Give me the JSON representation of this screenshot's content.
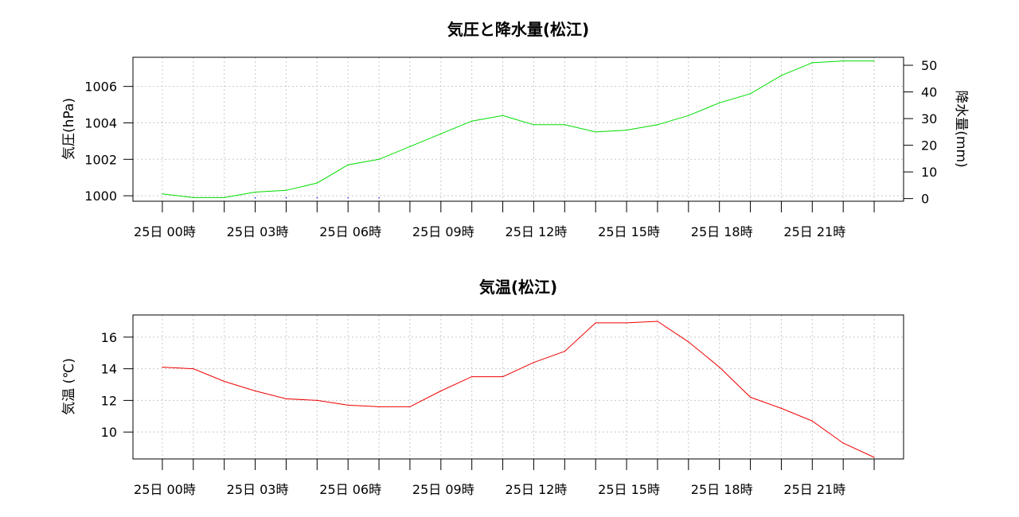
{
  "chart_data": [
    {
      "type": "line",
      "title": "気圧と降水量(松江)",
      "ylabel": "気圧(hPa)",
      "y2label": "降水量(mm)",
      "x_tick_labels": [
        "25日 00時",
        "25日 03時",
        "25日 06時",
        "25日 09時",
        "25日 12時",
        "25日 15時",
        "25日 18時",
        "25日 21時"
      ],
      "x": [
        0,
        1,
        2,
        3,
        4,
        5,
        6,
        7,
        8,
        9,
        10,
        11,
        12,
        13,
        14,
        15,
        16,
        17,
        18,
        19,
        20,
        21,
        22,
        23
      ],
      "xlim": [
        -0.95,
        23.95
      ],
      "ylim": [
        999.7,
        1007.6
      ],
      "yticks": [
        1000,
        1002,
        1004,
        1006
      ],
      "y2lim": [
        -1,
        53
      ],
      "y2ticks": [
        0,
        10,
        20,
        30,
        40,
        50
      ],
      "grid": true,
      "series": [
        {
          "axis": "left",
          "color": "#00dd00",
          "values": [
            1000.1,
            999.9,
            999.9,
            1000.2,
            1000.3,
            1000.7,
            1001.7,
            1002.0,
            1002.7,
            1003.4,
            1004.1,
            1004.4,
            1003.9,
            1003.9,
            1003.5,
            1003.6,
            1003.9,
            1004.4,
            1005.1,
            1005.6,
            1006.6,
            1007.3,
            1007.4,
            1007.4
          ]
        },
        {
          "axis": "right",
          "type": "bar",
          "color": "#0000ff",
          "values": [
            0,
            0,
            0,
            0.5,
            0.5,
            0.5,
            0.5,
            0.5,
            0,
            0,
            0,
            0,
            0,
            0,
            0,
            0,
            0,
            0,
            0,
            0,
            0,
            0,
            0,
            0
          ]
        }
      ]
    },
    {
      "type": "line",
      "title": "気温(松江)",
      "ylabel": "気温 (℃)",
      "x_tick_labels": [
        "25日 00時",
        "25日 03時",
        "25日 06時",
        "25日 09時",
        "25日 12時",
        "25日 15時",
        "25日 18時",
        "25日 21時"
      ],
      "x": [
        0,
        1,
        2,
        3,
        4,
        5,
        6,
        7,
        8,
        9,
        10,
        11,
        12,
        13,
        14,
        15,
        16,
        17,
        18,
        19,
        20,
        21,
        22,
        23
      ],
      "xlim": [
        -0.95,
        23.95
      ],
      "ylim": [
        8.3,
        17.4
      ],
      "yticks": [
        10,
        12,
        14,
        16
      ],
      "grid": true,
      "series": [
        {
          "axis": "left",
          "color": "#ee0000",
          "values": [
            14.1,
            14.0,
            13.2,
            12.6,
            12.1,
            12.0,
            11.7,
            11.6,
            11.6,
            12.6,
            13.5,
            13.5,
            14.4,
            15.1,
            16.9,
            16.9,
            17.0,
            15.7,
            14.1,
            12.2,
            11.5,
            10.7,
            9.3,
            8.4
          ]
        }
      ]
    }
  ]
}
